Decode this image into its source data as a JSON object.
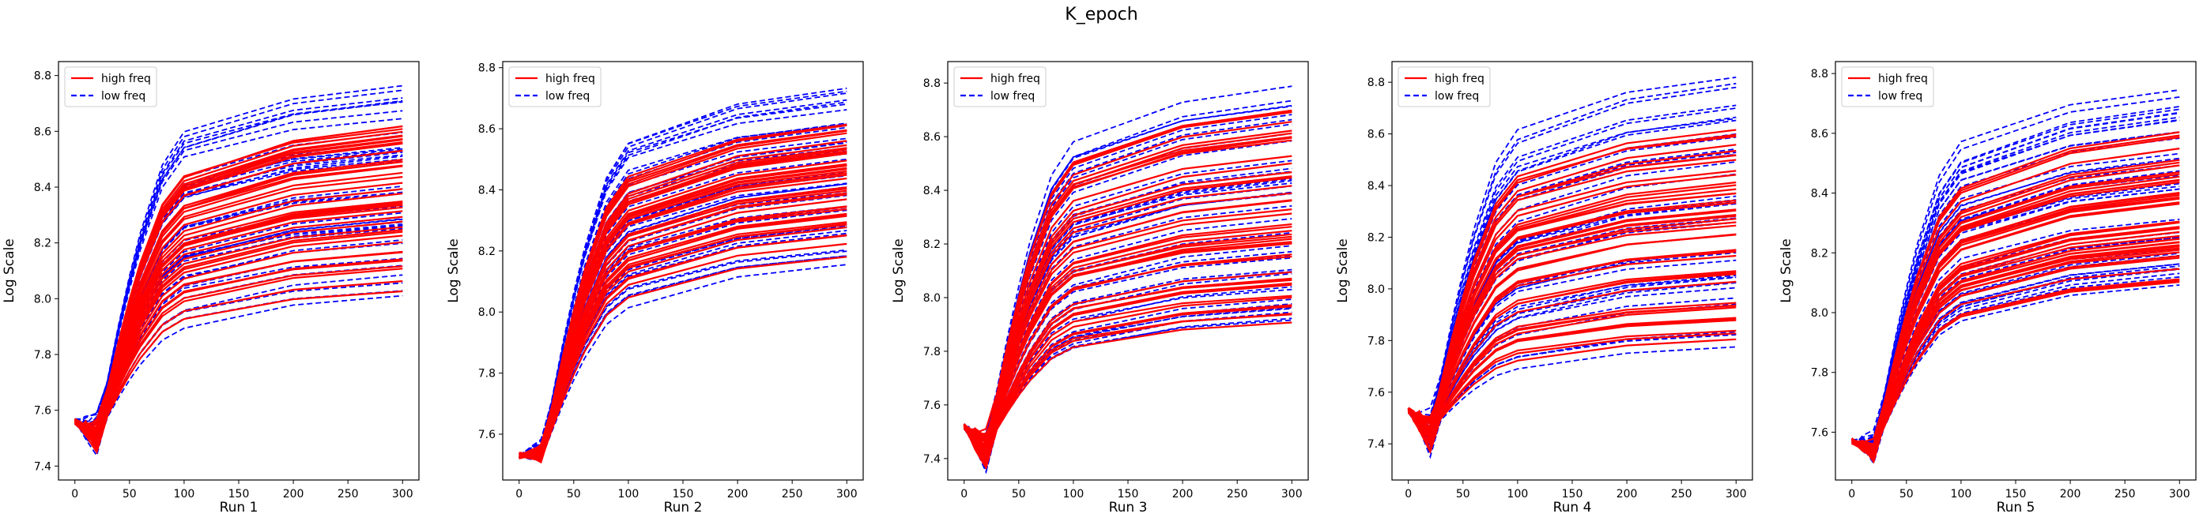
{
  "figure_title": "K_epoch",
  "colors": {
    "high": "#ff0000",
    "low": "#0000ff"
  },
  "chart_data": [
    {
      "type": "line",
      "xlabel": "Run 1",
      "ylabel": "Log Scale",
      "xlim": [
        -15,
        315
      ],
      "ylim": [
        7.35,
        8.85
      ],
      "xticks": [
        0,
        50,
        100,
        150,
        200,
        250,
        300
      ],
      "yticks": [
        7.4,
        7.6,
        7.8,
        8.0,
        8.2,
        8.4,
        8.6,
        8.8
      ],
      "x": [
        0,
        5,
        10,
        20,
        30,
        40,
        50,
        60,
        80,
        100,
        200,
        300
      ],
      "start": 7.56,
      "dip": 0.1,
      "legend": {
        "position": "upper-left",
        "entries": [
          {
            "label": "high freq",
            "series": "high"
          },
          {
            "label": "low freq",
            "series": "low"
          }
        ]
      },
      "series": [
        {
          "key": "high",
          "style": "solid",
          "low_end": [
            7.52,
            7.85
          ],
          "high_end": [
            8.02,
            8.63
          ],
          "count": 45
        },
        {
          "key": "low",
          "style": "dashed",
          "low_end": [
            7.44,
            8.12
          ],
          "high_end": [
            8.0,
            8.77
          ],
          "count": 40
        }
      ]
    },
    {
      "type": "line",
      "xlabel": "Run 2",
      "ylabel": "Log Scale",
      "xlim": [
        -15,
        315
      ],
      "ylim": [
        7.45,
        8.82
      ],
      "xticks": [
        0,
        50,
        100,
        150,
        200,
        250,
        300
      ],
      "yticks": [
        7.6,
        7.8,
        8.0,
        8.2,
        8.4,
        8.6,
        8.8
      ],
      "x": [
        0,
        5,
        10,
        20,
        30,
        40,
        50,
        60,
        80,
        100,
        200,
        300
      ],
      "start": 7.53,
      "dip": 0.03,
      "legend": {
        "position": "upper-left",
        "entries": [
          {
            "label": "high freq",
            "series": "high"
          },
          {
            "label": "low freq",
            "series": "low"
          }
        ]
      },
      "series": [
        {
          "key": "high",
          "style": "solid",
          "low_end": [
            7.55,
            7.85
          ],
          "high_end": [
            8.17,
            8.62
          ],
          "count": 45
        },
        {
          "key": "low",
          "style": "dashed",
          "low_end": [
            7.5,
            8.02
          ],
          "high_end": [
            8.14,
            8.75
          ],
          "count": 40
        }
      ]
    },
    {
      "type": "line",
      "xlabel": "Run 3",
      "ylabel": "Log Scale",
      "xlim": [
        -15,
        315
      ],
      "ylim": [
        7.32,
        8.88
      ],
      "xticks": [
        0,
        50,
        100,
        150,
        200,
        250,
        300
      ],
      "yticks": [
        7.4,
        7.6,
        7.8,
        8.0,
        8.2,
        8.4,
        8.6,
        8.8
      ],
      "x": [
        0,
        5,
        10,
        20,
        30,
        40,
        50,
        60,
        80,
        100,
        200,
        300
      ],
      "start": 7.52,
      "dip": 0.14,
      "legend": {
        "position": "upper-left",
        "entries": [
          {
            "label": "high freq",
            "series": "high"
          },
          {
            "label": "low freq",
            "series": "low"
          }
        ]
      },
      "series": [
        {
          "key": "high",
          "style": "solid",
          "low_end": [
            7.45,
            7.85
          ],
          "high_end": [
            7.9,
            8.7
          ],
          "count": 45
        },
        {
          "key": "low",
          "style": "dashed",
          "low_end": [
            7.36,
            7.92
          ],
          "high_end": [
            7.88,
            8.83
          ],
          "count": 40
        }
      ]
    },
    {
      "type": "line",
      "xlabel": "Run 4",
      "ylabel": "Log Scale",
      "xlim": [
        -15,
        315
      ],
      "ylim": [
        7.26,
        8.88
      ],
      "xticks": [
        0,
        50,
        100,
        150,
        200,
        250,
        300
      ],
      "yticks": [
        7.4,
        7.6,
        7.8,
        8.0,
        8.2,
        8.4,
        8.6,
        8.8
      ],
      "x": [
        0,
        5,
        10,
        20,
        30,
        40,
        50,
        60,
        80,
        100,
        200,
        300
      ],
      "start": 7.53,
      "dip": 0.14,
      "legend": {
        "position": "upper-left",
        "entries": [
          {
            "label": "high freq",
            "series": "high"
          },
          {
            "label": "low freq",
            "series": "low"
          }
        ]
      },
      "series": [
        {
          "key": "high",
          "style": "solid",
          "low_end": [
            7.38,
            7.85
          ],
          "high_end": [
            7.8,
            8.62
          ],
          "count": 45
        },
        {
          "key": "low",
          "style": "dashed",
          "low_end": [
            7.28,
            7.9
          ],
          "high_end": [
            7.76,
            8.82
          ],
          "count": 40
        }
      ]
    },
    {
      "type": "line",
      "xlabel": "Run 5",
      "ylabel": "Log Scale",
      "xlim": [
        -15,
        315
      ],
      "ylim": [
        7.44,
        8.84
      ],
      "xticks": [
        0,
        50,
        100,
        150,
        200,
        250,
        300
      ],
      "yticks": [
        7.6,
        7.8,
        8.0,
        8.2,
        8.4,
        8.6,
        8.8
      ],
      "x": [
        0,
        5,
        10,
        20,
        30,
        40,
        50,
        60,
        80,
        100,
        200,
        300
      ],
      "start": 7.57,
      "dip": 0.06,
      "legend": {
        "position": "upper-left",
        "entries": [
          {
            "label": "high freq",
            "series": "high"
          },
          {
            "label": "low freq",
            "series": "low"
          }
        ]
      },
      "series": [
        {
          "key": "high",
          "style": "solid",
          "low_end": [
            7.55,
            7.78
          ],
          "high_end": [
            8.1,
            8.62
          ],
          "count": 45
        },
        {
          "key": "low",
          "style": "dashed",
          "low_end": [
            7.48,
            8.0
          ],
          "high_end": [
            8.08,
            8.78
          ],
          "count": 40
        }
      ]
    }
  ]
}
